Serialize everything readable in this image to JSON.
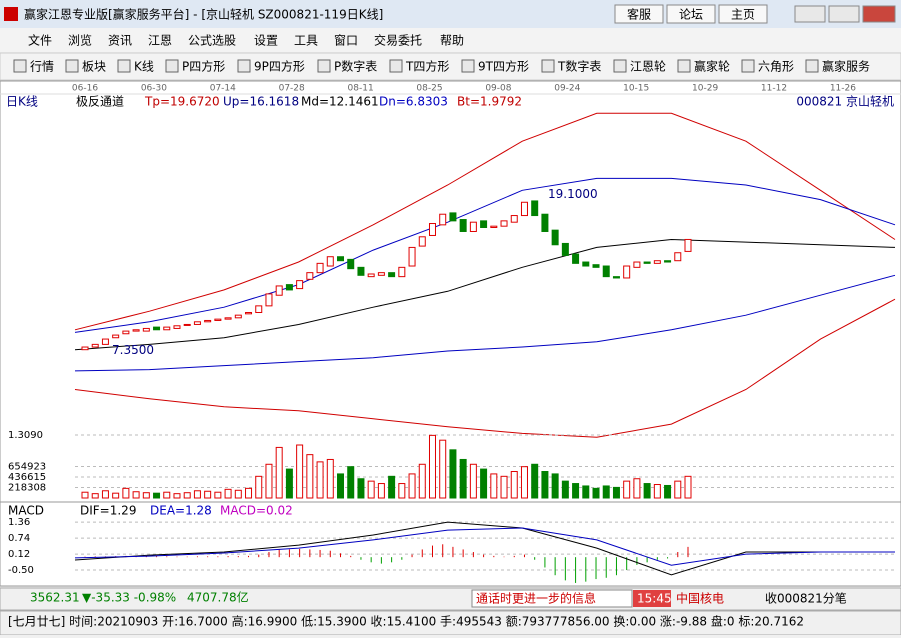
{
  "window": {
    "title": "赢家江恩专业版[赢家服务平台] - [京山轻机  SZ000821-119日K线]",
    "buttons": [
      "客服",
      "论坛",
      "主页"
    ]
  },
  "menu": [
    "文件",
    "浏览",
    "资讯",
    "江恩",
    "公式选股",
    "设置",
    "工具",
    "窗口",
    "交易委托",
    "帮助"
  ],
  "toolbar": [
    "行情",
    "板块",
    "K线",
    "P四方形",
    "9P四方形",
    "P数字表",
    "T四方形",
    "9T四方形",
    "T数字表",
    "江恩轮",
    "赢家轮",
    "六角形",
    "赢家服务"
  ],
  "period_label": "日K线",
  "date_ticks": [
    "06-16",
    "06-30",
    "07-14",
    "07-28",
    "08-11",
    "08-25",
    "09-08",
    "09-24",
    "10-15",
    "10-29",
    "11-12",
    "11-26"
  ],
  "stock": "000821  京山轻机",
  "chart_data": [
    {
      "type": "candlestick",
      "title": "极反通道",
      "params": [
        "Tp=19.6720",
        "Up=16.1618",
        "Md=12.1461",
        "Dn=6.8303",
        "Bt=1.9792"
      ],
      "open": [
        7.1,
        7.3,
        7.5,
        8.0,
        8.3,
        8.5,
        8.5,
        8.8,
        8.6,
        8.7,
        9.0,
        9.0,
        9.2,
        9.3,
        9.4,
        9.5,
        9.8,
        9.9,
        10.4,
        11.2,
        12.0,
        11.7,
        12.4,
        12.9,
        13.4,
        14.1,
        13.9,
        13.3,
        12.6,
        12.7,
        12.9,
        12.6,
        13.4,
        14.9,
        15.7,
        16.5,
        17.4,
        16.9,
        16.0,
        16.8,
        16.3,
        16.4,
        16.7,
        17.2,
        18.3,
        17.3,
        16.1,
        15.1,
        14.3,
        13.7,
        13.5,
        13.4,
        12.6,
        12.5,
        13.3,
        13.7,
        13.6,
        13.8,
        13.8,
        14.5
      ],
      "close": [
        7.3,
        7.5,
        7.9,
        8.2,
        8.5,
        8.6,
        8.7,
        8.6,
        8.8,
        8.9,
        9.0,
        9.2,
        9.3,
        9.4,
        9.5,
        9.7,
        9.9,
        10.4,
        11.3,
        11.9,
        11.6,
        12.3,
        12.9,
        13.6,
        14.1,
        13.8,
        13.2,
        12.7,
        12.8,
        12.9,
        12.6,
        13.3,
        14.8,
        15.6,
        16.6,
        17.3,
        16.8,
        16.0,
        16.7,
        16.3,
        16.4,
        16.8,
        17.2,
        18.2,
        17.2,
        16.0,
        15.0,
        14.2,
        13.6,
        13.4,
        13.3,
        12.6,
        12.5,
        13.4,
        13.7,
        13.6,
        13.8,
        13.7,
        14.4,
        15.4
      ],
      "lines": [
        {
          "color": "#d00000",
          "values": [
            8.6,
            10.0,
            11.6,
            13.7,
            16.5,
            19.5,
            22.8,
            24.9,
            24.9,
            22.8,
            19.1,
            15.4
          ]
        },
        {
          "color": "#0000c0",
          "values": [
            8.4,
            9.2,
            10.3,
            12.0,
            14.6,
            16.7,
            19.1,
            20.0,
            20.0,
            19.5,
            18.4,
            16.5
          ]
        },
        {
          "color": "#000000",
          "values": [
            7.1,
            7.5,
            8.0,
            9.0,
            10.3,
            11.5,
            13.3,
            14.8,
            15.4,
            15.2,
            15.0,
            14.8
          ]
        },
        {
          "color": "#0000c0",
          "values": [
            5.5,
            5.6,
            5.9,
            6.2,
            6.5,
            7.0,
            7.3,
            7.7,
            8.6,
            9.7,
            11.2,
            12.7
          ]
        },
        {
          "color": "#d00000",
          "values": [
            4.1,
            3.4,
            2.8,
            2.5,
            1.9,
            1.3,
            0.8,
            0.5,
            1.5,
            4.1,
            7.9,
            10.9
          ]
        }
      ],
      "annotations": [
        {
          "value": 19.1,
          "label": "19.1000"
        },
        {
          "value": 7.35,
          "label": "7.3500"
        }
      ],
      "ylim": [
        0.3,
        25.9
      ]
    },
    {
      "type": "bar",
      "values": [
        120000,
        90000,
        150000,
        100000,
        200000,
        130000,
        110000,
        100000,
        120000,
        90000,
        110000,
        150000,
        140000,
        120000,
        180000,
        160000,
        200000,
        450000,
        700000,
        1050000,
        600000,
        1100000,
        900000,
        750000,
        800000,
        500000,
        650000,
        400000,
        350000,
        300000,
        450000,
        300000,
        500000,
        700000,
        1300000,
        1200000,
        1000000,
        800000,
        700000,
        600000,
        500000,
        450000,
        550000,
        650000,
        700000,
        550000,
        500000,
        350000,
        300000,
        250000,
        200000,
        250000,
        220000,
        350000,
        400000,
        300000,
        280000,
        260000,
        350000,
        450000
      ],
      "ylim": [
        0,
        1370000
      ],
      "yticks": [
        {
          "value": 1309000,
          "label": "1.3090"
        },
        654923,
        436615,
        218308
      ]
    },
    {
      "type": "macd",
      "title": "MACD",
      "params": [
        {
          "text": "DIF=1.29",
          "color": "#000000"
        },
        {
          "text": "DEA=1.28",
          "color": "#0000c0"
        },
        {
          "text": "MACD=0.02",
          "color": "#c000c0"
        }
      ],
      "histogram": [
        0.02,
        0.03,
        0.03,
        0.04,
        0.05,
        0.05,
        0.04,
        0.03,
        0.03,
        0.02,
        0.02,
        0.03,
        0.03,
        0.03,
        0.04,
        0.04,
        0.05,
        0.1,
        0.2,
        0.3,
        0.3,
        0.32,
        0.3,
        0.28,
        0.25,
        0.15,
        0.05,
        -0.1,
        -0.2,
        -0.25,
        -0.2,
        -0.1,
        0.1,
        0.3,
        0.45,
        0.5,
        0.4,
        0.3,
        0.2,
        0.1,
        0.05,
        0.02,
        0.05,
        0.1,
        -0.1,
        -0.4,
        -0.7,
        -0.9,
        -1.0,
        -0.95,
        -0.85,
        -0.8,
        -0.7,
        -0.5,
        -0.3,
        -0.2,
        -0.1,
        -0.05,
        0.2,
        0.4
      ],
      "lines": [
        {
          "color": "#000000",
          "values": [
            -0.11,
            0.08,
            0.2,
            0.47,
            0.86,
            1.36,
            1.13,
            0.35,
            -0.69,
            0.2,
            0.2,
            0.2
          ]
        },
        {
          "color": "#0000c0",
          "values": [
            -0.03,
            0.04,
            0.16,
            0.35,
            0.67,
            1.05,
            1.13,
            0.67,
            -0.31,
            0.12,
            0.2,
            0.2
          ]
        }
      ],
      "ylim": [
        -1.08,
        1.83
      ],
      "yticks": [
        1.36,
        0.74,
        0.12,
        {
          "value": -0.5,
          "label": "-0.50"
        }
      ]
    }
  ],
  "status": {
    "index": "3562.31",
    "change": "▼-35.33 -0.98%",
    "amount": "4707.78亿",
    "ticker": "通话时更进一步的信息",
    "time": "15:45",
    "ticker_stock": "中国核电",
    "right": "收000821分笔"
  },
  "info_bar": "[七月廿七] 时间:20210903 开:16.7000 高:16.9900 低:15.3900 收:15.4100 手:495543 额:793777856.00 换:0.00 涨:-9.88 盘:0 标:20.7162"
}
